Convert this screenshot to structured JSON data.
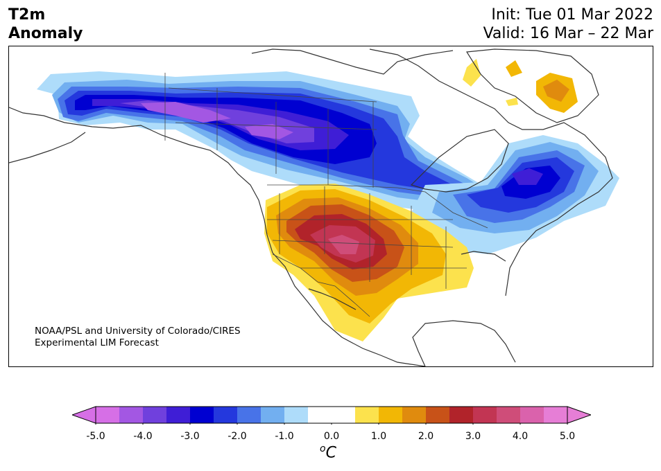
{
  "header": {
    "title_line1": "T2m",
    "title_line2": "Anomaly",
    "init_text": "Init: Tue 01 Mar 2022",
    "valid_text": "Valid: 16 Mar – 22 Mar"
  },
  "map": {
    "credit_line1": "NOAA/PSL and University of Colorado/CIRES",
    "credit_line2": "Experimental LIM Forecast",
    "region": "North America",
    "features": [
      "cold anomaly across Alaska, western Canada and northern US plains",
      "cold anomaly over eastern Canada and Great Lakes",
      "warm anomaly over southwestern and south-central US and northern Mexico",
      "warm anomaly over Greenland"
    ]
  },
  "colorbar": {
    "unit_base": "C",
    "unit_sup": "o",
    "tick_labels": [
      "-5.0",
      "-4.0",
      "-3.0",
      "-2.0",
      "-1.0",
      "0.0",
      "1.0",
      "2.0",
      "3.0",
      "4.0",
      "5.0"
    ],
    "colors": [
      "#d66fe6",
      "#a357e3",
      "#7040dd",
      "#3f1ed6",
      "#0000d1",
      "#2438dd",
      "#4873e8",
      "#72aff0",
      "#aedcfa",
      "#ffffff",
      "#ffffff",
      "#fce24d",
      "#f2b705",
      "#e08b0e",
      "#c85218",
      "#b1232a",
      "#c23553",
      "#cf4d79",
      "#da62ac",
      "#e67ed6"
    ],
    "extend_low_color": "#d66fe6",
    "extend_high_color": "#e67ed6"
  }
}
